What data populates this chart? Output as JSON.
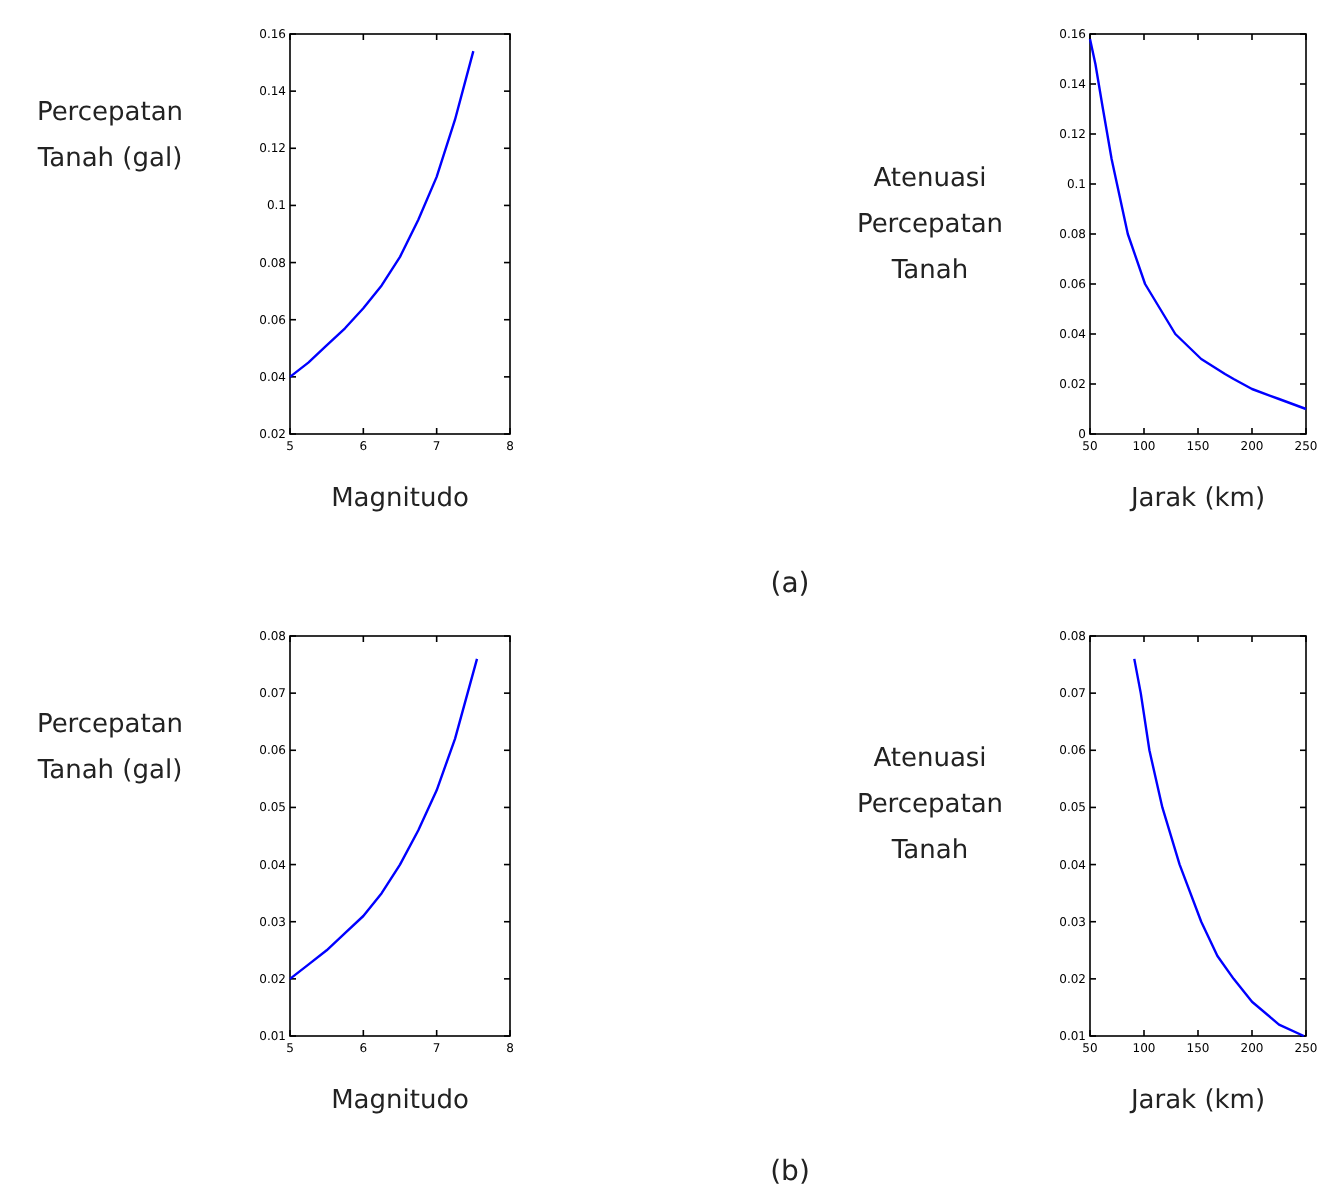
{
  "chart_data": [
    {
      "type": "line",
      "xlabel": "Magnitudo",
      "ylabel": "Percepatan Tanah (gal)",
      "xlim": [
        5,
        8
      ],
      "xticks": [
        5,
        6,
        7,
        8
      ],
      "ylim": [
        0.02,
        0.16
      ],
      "yticks": [
        0.02,
        0.04,
        0.06,
        0.08,
        0.1,
        0.12,
        0.14,
        0.16
      ],
      "grid": false,
      "series": [
        {
          "color": "#0000ff",
          "x": [
            5,
            5.25,
            5.5,
            5.75,
            6,
            6.25,
            6.5,
            6.75,
            7,
            7.25,
            7.5
          ],
          "values": [
            0.04,
            0.045,
            0.051,
            0.057,
            0.064,
            0.072,
            0.082,
            0.095,
            0.11,
            0.13,
            0.154
          ]
        }
      ]
    },
    {
      "type": "line",
      "xlabel": "Jarak (km)",
      "ylabel": "Atenuasi Percepatan Tanah",
      "xlim": [
        50,
        250
      ],
      "xticks": [
        50,
        100,
        150,
        200,
        250
      ],
      "ylim": [
        0,
        0.16
      ],
      "yticks": [
        0,
        0.02,
        0.04,
        0.06,
        0.08,
        0.1,
        0.12,
        0.14,
        0.16
      ],
      "grid": false,
      "annotations": [
        "(a)"
      ],
      "series": [
        {
          "color": "#0000ff",
          "x": [
            50,
            55,
            62,
            70,
            75,
            85,
            101,
            115,
            129,
            153,
            175,
            183,
            200,
            225,
            250
          ],
          "values": [
            0.158,
            0.148,
            0.13,
            0.11,
            0.1,
            0.08,
            0.06,
            0.05,
            0.04,
            0.03,
            0.024,
            0.022,
            0.018,
            0.014,
            0.01
          ]
        }
      ]
    },
    {
      "type": "line",
      "xlabel": "Magnitudo",
      "ylabel": "Percepatan Tanah (gal)",
      "xlim": [
        5,
        8
      ],
      "xticks": [
        5,
        6,
        7,
        8
      ],
      "ylim": [
        0.01,
        0.08
      ],
      "yticks": [
        0.01,
        0.02,
        0.03,
        0.04,
        0.05,
        0.06,
        0.07,
        0.08
      ],
      "grid": false,
      "series": [
        {
          "color": "#0000ff",
          "x": [
            5,
            5.25,
            5.5,
            5.75,
            6,
            6.25,
            6.5,
            6.75,
            7,
            7.25,
            7.55
          ],
          "values": [
            0.02,
            0.0225,
            0.025,
            0.028,
            0.031,
            0.035,
            0.04,
            0.046,
            0.053,
            0.062,
            0.076
          ]
        }
      ]
    },
    {
      "type": "line",
      "xlabel": "Jarak (km)",
      "ylabel": "Atenuasi Percepatan Tanah",
      "xlim": [
        50,
        250
      ],
      "xticks": [
        50,
        100,
        150,
        200,
        250
      ],
      "ylim": [
        0.01,
        0.08
      ],
      "yticks": [
        0.01,
        0.02,
        0.03,
        0.04,
        0.05,
        0.06,
        0.07,
        0.08
      ],
      "grid": false,
      "annotations": [
        "(b)"
      ],
      "series": [
        {
          "color": "#0000ff",
          "x": [
            91,
            97,
            105,
            117,
            133,
            153,
            168,
            183,
            200,
            225,
            248
          ],
          "values": [
            0.076,
            0.07,
            0.06,
            0.05,
            0.04,
            0.03,
            0.024,
            0.02,
            0.016,
            0.012,
            0.01
          ]
        }
      ]
    }
  ]
}
